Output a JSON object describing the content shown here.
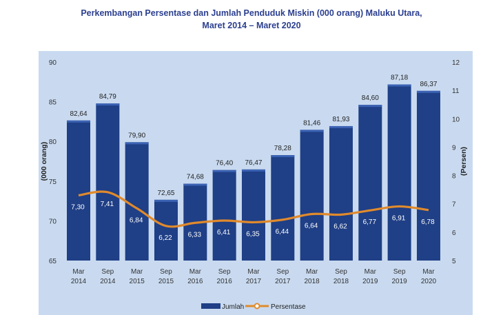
{
  "chart_data": {
    "type": "bar",
    "title_line1": "Perkembangan Persentase dan Jumlah Penduduk Miskin (000 orang) Maluku Utara,",
    "title_line2": "Maret 2014 – Maret 2020",
    "categories": [
      [
        "Mar",
        "2014"
      ],
      [
        "Sep",
        "2014"
      ],
      [
        "Mar",
        "2015"
      ],
      [
        "Sep",
        "2015"
      ],
      [
        "Mar",
        "2016"
      ],
      [
        "Sep",
        "2016"
      ],
      [
        "Mar",
        "2017"
      ],
      [
        "Sep",
        "2017"
      ],
      [
        "Mar",
        "2018"
      ],
      [
        "Sep",
        "2018"
      ],
      [
        "Mar",
        "2019"
      ],
      [
        "Sep",
        "2019"
      ],
      [
        "Mar",
        "2020"
      ]
    ],
    "series": [
      {
        "name": "Jumlah",
        "type": "bar",
        "axis": "left",
        "values": [
          82.64,
          84.79,
          79.9,
          72.65,
          74.68,
          76.4,
          76.47,
          78.28,
          81.46,
          81.93,
          84.6,
          87.18,
          86.37
        ],
        "labels": [
          "82,64",
          "84,79",
          "79,90",
          "72,65",
          "74,68",
          "76,40",
          "76,47",
          "78,28",
          "81,46",
          "81,93",
          "84,60",
          "87,18",
          "86,37"
        ]
      },
      {
        "name": "Persentase",
        "type": "line",
        "axis": "right",
        "values": [
          7.3,
          7.41,
          6.84,
          6.22,
          6.33,
          6.41,
          6.35,
          6.44,
          6.64,
          6.62,
          6.77,
          6.91,
          6.78
        ],
        "labels": [
          "7,30",
          "7,41",
          "6,84",
          "6,22",
          "6,33",
          "6,41",
          "6,35",
          "6,44",
          "6,64",
          "6,62",
          "6,77",
          "6,91",
          "6,78"
        ]
      }
    ],
    "ylabel_left": "(000 orang)",
    "ylabel_right": "(Persen)",
    "ylim_left": [
      65,
      90
    ],
    "yticks_left": [
      "65",
      "70",
      "75",
      "80",
      "85",
      "90"
    ],
    "ylim_right": [
      5,
      12
    ],
    "yticks_right": [
      "5",
      "6",
      "7",
      "8",
      "9",
      "10",
      "11",
      "12"
    ],
    "grid": false,
    "legend_position": "bottom-center",
    "colors": {
      "plot_background": "#c9daf0",
      "bar": "#1f3f86",
      "bar_top": "#3b62b3",
      "line": "#e08a2c"
    }
  }
}
